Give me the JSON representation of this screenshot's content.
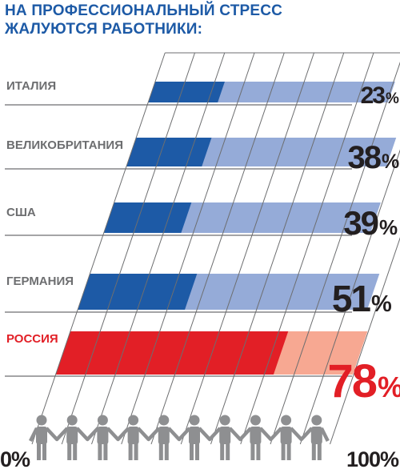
{
  "title_lines": [
    "НА ПРОФЕССИОНАЛЬНЫЙ СТРЕСС",
    "ЖАЛУЮТСЯ РАБОТНИКИ:"
  ],
  "colors": {
    "title": "#1d5aa6",
    "dark_bar": "#1d5aa6",
    "light_bar": "#95abd8",
    "highlight_dark": "#e21f26",
    "highlight_light": "#f7a892",
    "grid": "#6d6e70",
    "label": "#6d6e70",
    "value": "#231f20",
    "people": "#8e8f91"
  },
  "chart_data": {
    "type": "bar",
    "orientation": "horizontal",
    "categories": [
      "ИТАЛИЯ",
      "ВЕЛИКОБРИТАНИЯ",
      "США",
      "ГЕРМАНИЯ",
      "РОССИЯ"
    ],
    "values": [
      23,
      38,
      39,
      51,
      78
    ],
    "value_labels": [
      "23",
      "38",
      "39",
      "51",
      "78"
    ],
    "unit": "%",
    "highlight": "РОССИЯ",
    "xlim": [
      0,
      100
    ],
    "axis_labels": {
      "min": "0%",
      "max": "100%"
    },
    "grid": true
  }
}
